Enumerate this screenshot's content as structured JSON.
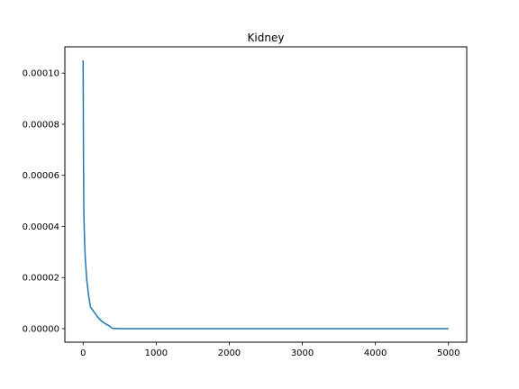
{
  "chart_data": {
    "type": "line",
    "title": "Kidney",
    "xlabel": "",
    "ylabel": "",
    "xlim": [
      -250,
      5250
    ],
    "ylim": [
      -5.3e-06,
      0.0001103
    ],
    "xticks": [
      0,
      1000,
      2000,
      3000,
      4000,
      5000
    ],
    "xtick_labels": [
      "0",
      "1000",
      "2000",
      "3000",
      "4000",
      "5000"
    ],
    "yticks": [
      0,
      2e-05,
      4e-05,
      6e-05,
      8e-05,
      0.0001
    ],
    "ytick_labels": [
      "0.00000",
      "0.00002",
      "0.00004",
      "0.00006",
      "0.00008",
      "0.00010"
    ],
    "grid": false,
    "series": [
      {
        "name": "Kidney",
        "color": "#1f77b4",
        "x": [
          0,
          5,
          10,
          20,
          30,
          50,
          75,
          100,
          150,
          200,
          250,
          300,
          350,
          400,
          500,
          1000,
          2000,
          3000,
          4000,
          5000
        ],
        "y": [
          0.000105,
          6.5e-05,
          4.5e-05,
          3.4e-05,
          2.7e-05,
          1.9e-05,
          1.3e-05,
          8.5e-06,
          6.5e-06,
          4.5e-06,
          3e-06,
          2e-06,
          1.2e-06,
          1e-07,
          0,
          0,
          0,
          0,
          0,
          0
        ]
      }
    ]
  }
}
